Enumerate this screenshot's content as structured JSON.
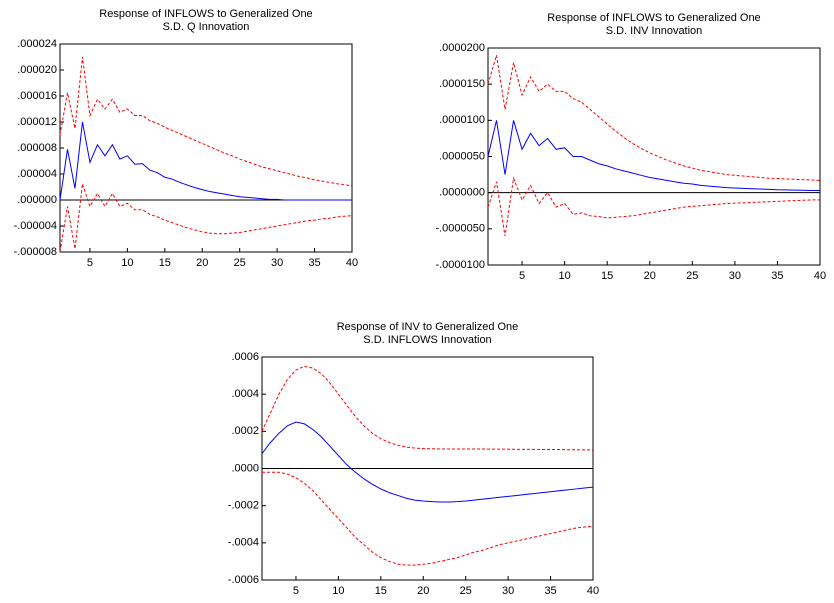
{
  "chart_data": [
    {
      "type": "line",
      "title": "Response of INFLOWS to Generalized One",
      "subtitle": "S.D. Q Innovation",
      "x": [
        1,
        2,
        3,
        4,
        5,
        6,
        7,
        8,
        9,
        10,
        11,
        12,
        13,
        14,
        15,
        16,
        17,
        18,
        19,
        20,
        21,
        22,
        23,
        24,
        25,
        26,
        27,
        28,
        29,
        30,
        31,
        32,
        33,
        34,
        35,
        36,
        37,
        38,
        39,
        40
      ],
      "xlim": [
        1,
        40
      ],
      "xticks": [
        5,
        10,
        15,
        20,
        25,
        30,
        35,
        40
      ],
      "ylim": [
        -8e-06,
        2.4e-05
      ],
      "yticks": [
        {
          "value": -8e-06,
          "label": "-.000008"
        },
        {
          "value": -4e-06,
          "label": "-.000004"
        },
        {
          "value": 0,
          "label": ".000000"
        },
        {
          "value": 4e-06,
          "label": ".000004"
        },
        {
          "value": 8e-06,
          "label": ".000008"
        },
        {
          "value": 1.2e-05,
          "label": ".000012"
        },
        {
          "value": 1.6e-05,
          "label": ".000016"
        },
        {
          "value": 2e-05,
          "label": ".000020"
        },
        {
          "value": 2.4e-05,
          "label": ".000024"
        }
      ],
      "zero_line": true,
      "series": [
        {
          "color": "#0000ff",
          "values": [
            0,
            7.8e-06,
            1.8e-06,
            1.2e-05,
            5.8e-06,
            8.5e-06,
            6.8e-06,
            8.5e-06,
            6.3e-06,
            6.8e-06,
            5.5e-06,
            5.6e-06,
            4.6e-06,
            4.2e-06,
            3.5e-06,
            3.2e-06,
            2.7e-06,
            2.3e-06,
            1.9e-06,
            1.6e-06,
            1.3e-06,
            1.1e-06,
            9e-07,
            7e-07,
            5e-07,
            4e-07,
            3e-07,
            2e-07,
            1e-07,
            1e-07,
            0,
            0,
            0,
            0,
            0,
            0,
            0,
            0,
            0,
            0
          ]
        },
        {
          "color": "#ff0000",
          "dashed": true,
          "values": [
            1e-05,
            1.65e-05,
            1.1e-05,
            2.2e-05,
            1.3e-05,
            1.55e-05,
            1.4e-05,
            1.55e-05,
            1.35e-05,
            1.4e-05,
            1.3e-05,
            1.3e-05,
            1.22e-05,
            1.18e-05,
            1.12e-05,
            1.07e-05,
            1.02e-05,
            9.7e-06,
            9.2e-06,
            8.7e-06,
            8.2e-06,
            7.7e-06,
            7.2e-06,
            6.8e-06,
            6.3e-06,
            5.9e-06,
            5.5e-06,
            5.1e-06,
            4.8e-06,
            4.5e-06,
            4.2e-06,
            3.9e-06,
            3.6e-06,
            3.4e-06,
            3.1e-06,
            2.9e-06,
            2.7e-06,
            2.5e-06,
            2.35e-06,
            2.2e-06
          ]
        },
        {
          "color": "#ff0000",
          "dashed": true,
          "values": [
            -8e-06,
            -1e-06,
            -7.5e-06,
            2.5e-06,
            -1e-06,
            1e-06,
            -1e-06,
            1e-06,
            -1e-06,
            -5e-07,
            -1.5e-06,
            -1.5e-06,
            -2.2e-06,
            -2.6e-06,
            -3.1e-06,
            -3.5e-06,
            -3.9e-06,
            -4.3e-06,
            -4.6e-06,
            -4.9e-06,
            -5.1e-06,
            -5.2e-06,
            -5.2e-06,
            -5.1e-06,
            -5e-06,
            -4.8e-06,
            -4.6e-06,
            -4.4e-06,
            -4.2e-06,
            -4e-06,
            -3.8e-06,
            -3.6e-06,
            -3.4e-06,
            -3.2e-06,
            -3.1e-06,
            -2.9e-06,
            -2.8e-06,
            -2.6e-06,
            -2.5e-06,
            -2.4e-06
          ]
        }
      ]
    },
    {
      "type": "line",
      "title": "Response of INFLOWS to Generalized One",
      "subtitle": "S.D. INV Innovation",
      "x": [
        1,
        2,
        3,
        4,
        5,
        6,
        7,
        8,
        9,
        10,
        11,
        12,
        13,
        14,
        15,
        16,
        17,
        18,
        19,
        20,
        21,
        22,
        23,
        24,
        25,
        26,
        27,
        28,
        29,
        30,
        31,
        32,
        33,
        34,
        35,
        36,
        37,
        38,
        39,
        40
      ],
      "xlim": [
        1,
        40
      ],
      "xticks": [
        5,
        10,
        15,
        20,
        25,
        30,
        35,
        40
      ],
      "ylim": [
        -1e-05,
        2e-05
      ],
      "yticks": [
        {
          "value": -1e-05,
          "label": "-.0000100"
        },
        {
          "value": -5e-06,
          "label": "-.0000050"
        },
        {
          "value": 0,
          "label": ".0000000"
        },
        {
          "value": 5e-06,
          "label": ".0000050"
        },
        {
          "value": 1e-05,
          "label": ".0000100"
        },
        {
          "value": 1.5e-05,
          "label": ".0000150"
        },
        {
          "value": 2e-05,
          "label": ".0000200"
        }
      ],
      "zero_line": true,
      "series": [
        {
          "color": "#0000ff",
          "values": [
            5e-06,
            1e-05,
            2.5e-06,
            1e-05,
            6e-06,
            8.2e-06,
            6.5e-06,
            7.5e-06,
            6e-06,
            6.2e-06,
            5e-06,
            5e-06,
            4.5e-06,
            4e-06,
            3.7e-06,
            3.3e-06,
            3e-06,
            2.7e-06,
            2.4e-06,
            2.1e-06,
            1.9e-06,
            1.7e-06,
            1.5e-06,
            1.3e-06,
            1.2e-06,
            1e-06,
            9e-07,
            8e-07,
            7e-07,
            6.5e-07,
            6e-07,
            5.5e-07,
            5e-07,
            4.5e-07,
            4e-07,
            3.8e-07,
            3.5e-07,
            3.3e-07,
            3e-07,
            3e-07
          ]
        },
        {
          "color": "#ff0000",
          "dashed": true,
          "values": [
            1.5e-05,
            1.9e-05,
            1.15e-05,
            1.8e-05,
            1.35e-05,
            1.6e-05,
            1.4e-05,
            1.5e-05,
            1.4e-05,
            1.4e-05,
            1.3e-05,
            1.25e-05,
            1.15e-05,
            1.05e-05,
            9.5e-06,
            8.5e-06,
            7.6e-06,
            6.8e-06,
            6.1e-06,
            5.5e-06,
            5e-06,
            4.5e-06,
            4.1e-06,
            3.7e-06,
            3.4e-06,
            3.1e-06,
            2.9e-06,
            2.7e-06,
            2.5e-06,
            2.4e-06,
            2.3e-06,
            2.2e-06,
            2.1e-06,
            2e-06,
            1.95e-06,
            1.9e-06,
            1.85e-06,
            1.8e-06,
            1.75e-06,
            1.7e-06
          ]
        },
        {
          "color": "#ff0000",
          "dashed": true,
          "values": [
            -2e-06,
            1.5e-06,
            -6e-06,
            2e-06,
            -1e-06,
            1e-06,
            -1.5e-06,
            0,
            -2e-06,
            -1.5e-06,
            -3e-06,
            -2.8e-06,
            -3.2e-06,
            -3.3e-06,
            -3.5e-06,
            -3.4e-06,
            -3.3e-06,
            -3.2e-06,
            -3e-06,
            -2.8e-06,
            -2.6e-06,
            -2.4e-06,
            -2.2e-06,
            -2e-06,
            -1.9e-06,
            -1.8e-06,
            -1.7e-06,
            -1.6e-06,
            -1.5e-06,
            -1.45e-06,
            -1.4e-06,
            -1.35e-06,
            -1.3e-06,
            -1.25e-06,
            -1.2e-06,
            -1.15e-06,
            -1.1e-06,
            -1.05e-06,
            -1e-06,
            -1e-06
          ]
        }
      ]
    },
    {
      "type": "line",
      "title": "Response of INV to Generalized One",
      "subtitle": "S.D. INFLOWS Innovation",
      "x": [
        1,
        2,
        3,
        4,
        5,
        6,
        7,
        8,
        9,
        10,
        11,
        12,
        13,
        14,
        15,
        16,
        17,
        18,
        19,
        20,
        21,
        22,
        23,
        24,
        25,
        26,
        27,
        28,
        29,
        30,
        31,
        32,
        33,
        34,
        35,
        36,
        37,
        38,
        39,
        40
      ],
      "xlim": [
        1,
        40
      ],
      "xticks": [
        5,
        10,
        15,
        20,
        25,
        30,
        35,
        40
      ],
      "ylim": [
        -0.0006,
        0.0006
      ],
      "yticks": [
        {
          "value": -0.0006,
          "label": "-.0006"
        },
        {
          "value": -0.0004,
          "label": "-.0004"
        },
        {
          "value": -0.0002,
          "label": "-.0002"
        },
        {
          "value": 0,
          "label": ".0000"
        },
        {
          "value": 0.0002,
          "label": ".0002"
        },
        {
          "value": 0.0004,
          "label": ".0004"
        },
        {
          "value": 0.0006,
          "label": ".0006"
        }
      ],
      "zero_line": true,
      "series": [
        {
          "color": "#0000ff",
          "values": [
            8e-05,
            0.00014,
            0.00019,
            0.00023,
            0.00025,
            0.00024,
            0.00021,
            0.00017,
            0.00012,
            7e-05,
            2e-05,
            -2e-05,
            -5.5e-05,
            -8.5e-05,
            -0.00011,
            -0.00013,
            -0.000145,
            -0.00016,
            -0.00017,
            -0.000175,
            -0.000178,
            -0.00018,
            -0.00018,
            -0.000178,
            -0.000175,
            -0.00017,
            -0.000165,
            -0.00016,
            -0.000155,
            -0.00015,
            -0.000145,
            -0.00014,
            -0.000135,
            -0.00013,
            -0.000125,
            -0.00012,
            -0.000115,
            -0.00011,
            -0.000105,
            -0.0001
          ]
        },
        {
          "color": "#ff0000",
          "dashed": true,
          "values": [
            0.0002,
            0.0003,
            0.0004,
            0.00048,
            0.00053,
            0.00055,
            0.00054,
            0.00051,
            0.00046,
            0.0004,
            0.00034,
            0.00028,
            0.00023,
            0.00019,
            0.00016,
            0.00014,
            0.000125,
            0.000115,
            0.00011,
            0.000107,
            0.000106,
            0.000105,
            0.000105,
            0.000105,
            0.000105,
            0.000105,
            0.000105,
            0.000104,
            0.000104,
            0.000104,
            0.000103,
            0.000103,
            0.000103,
            0.000102,
            0.000102,
            0.000102,
            0.000101,
            0.000101,
            0.0001,
            0.0001
          ]
        },
        {
          "color": "#ff0000",
          "dashed": true,
          "values": [
            -2e-05,
            -2e-05,
            -2e-05,
            -3e-05,
            -5e-05,
            -8e-05,
            -0.00012,
            -0.00017,
            -0.00022,
            -0.00027,
            -0.00032,
            -0.00037,
            -0.00041,
            -0.00045,
            -0.00048,
            -0.0005,
            -0.000515,
            -0.00052,
            -0.00052,
            -0.000515,
            -0.00051,
            -0.0005,
            -0.00049,
            -0.00048,
            -0.000465,
            -0.00045,
            -0.00044,
            -0.000425,
            -0.00041,
            -0.0004,
            -0.00039,
            -0.00038,
            -0.00037,
            -0.00036,
            -0.00035,
            -0.00034,
            -0.00033,
            -0.00032,
            -0.000315,
            -0.00031
          ]
        }
      ]
    }
  ]
}
